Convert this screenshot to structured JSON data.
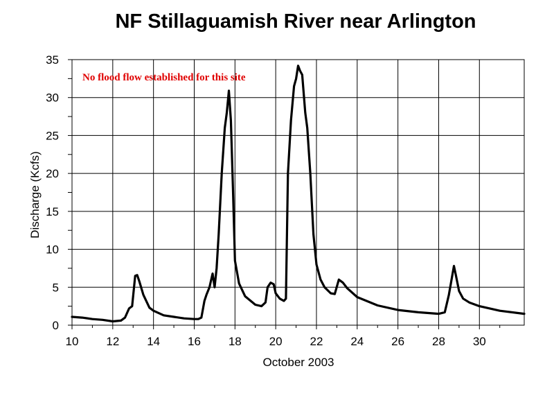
{
  "chart_data": {
    "type": "line",
    "title": "NF Stillaguamish River near Arlington",
    "xlabel": "October 2003",
    "ylabel": "Discharge (Kcfs)",
    "annotation": "No flood flow established for this site",
    "annotation_color": "#e00000",
    "line_color": "#000000",
    "grid": true,
    "xlim": [
      10,
      32.2
    ],
    "ylim": [
      0,
      35
    ],
    "x_ticks": [
      10,
      12,
      14,
      16,
      18,
      20,
      22,
      24,
      26,
      28,
      30
    ],
    "x_minor_ticks": [
      11,
      13,
      15,
      17,
      19,
      21,
      23,
      25,
      27,
      29,
      31
    ],
    "y_ticks": [
      0,
      5,
      10,
      15,
      20,
      25,
      30,
      35
    ],
    "y_minor_ticks": [
      2.5,
      7.5,
      12.5,
      17.5,
      22.5,
      27.5,
      32.5
    ],
    "series": [
      {
        "x": [
          10.0,
          10.5,
          11.0,
          11.5,
          12.0,
          12.4,
          12.6,
          12.8,
          12.95,
          13.1,
          13.2,
          13.3,
          13.5,
          13.8,
          14.0,
          14.5,
          15.0,
          15.5,
          16.0,
          16.2,
          16.35,
          16.5,
          16.6,
          16.75,
          16.9,
          17.0,
          17.1,
          17.2,
          17.35,
          17.5,
          17.6,
          17.7,
          17.8,
          17.9,
          18.0,
          18.2,
          18.5,
          19.0,
          19.3,
          19.5,
          19.6,
          19.75,
          19.9,
          20.0,
          20.2,
          20.4,
          20.5,
          20.6,
          20.75,
          20.9,
          21.0,
          21.1,
          21.2,
          21.3,
          21.45,
          21.55,
          21.7,
          21.85,
          22.0,
          22.2,
          22.4,
          22.7,
          22.9,
          23.1,
          23.3,
          23.5,
          24.0,
          25.0,
          26.0,
          27.0,
          27.5,
          28.0,
          28.3,
          28.5,
          28.6,
          28.75,
          28.85,
          29.0,
          29.2,
          29.5,
          30.0,
          31.0,
          32.2
        ],
        "y": [
          1.1,
          1.0,
          0.8,
          0.7,
          0.5,
          0.6,
          1.0,
          2.2,
          2.5,
          6.5,
          6.6,
          5.8,
          4.0,
          2.3,
          1.9,
          1.3,
          1.1,
          0.9,
          0.8,
          0.8,
          1.0,
          3.2,
          4.0,
          5.0,
          6.8,
          5.0,
          7.5,
          12.0,
          20.0,
          26.0,
          28.0,
          30.9,
          27.0,
          18.0,
          8.5,
          5.5,
          3.8,
          2.7,
          2.5,
          3.0,
          5.0,
          5.6,
          5.4,
          4.2,
          3.5,
          3.2,
          3.5,
          20.0,
          27.0,
          31.5,
          32.5,
          34.2,
          33.5,
          33.0,
          28.0,
          26.0,
          20.0,
          12.0,
          8.0,
          6.0,
          5.0,
          4.2,
          4.1,
          6.0,
          5.6,
          4.9,
          3.7,
          2.6,
          2.0,
          1.7,
          1.6,
          1.5,
          1.7,
          4.0,
          5.5,
          7.8,
          6.5,
          4.5,
          3.5,
          3.0,
          2.5,
          1.9,
          1.5
        ]
      }
    ]
  }
}
